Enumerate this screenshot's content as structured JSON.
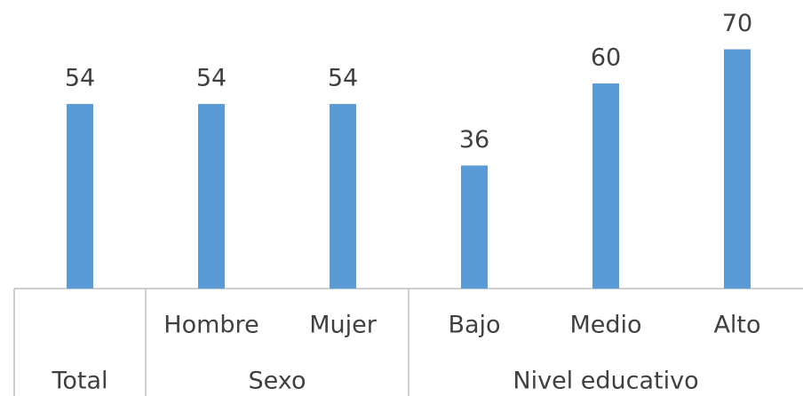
{
  "chart_data": {
    "type": "bar",
    "categories": [
      null,
      "Hombre",
      "Mujer",
      "Bajo",
      "Medio",
      "Alto"
    ],
    "groups": [
      {
        "label": "Total",
        "size": 1
      },
      {
        "label": "Sexo",
        "size": 2
      },
      {
        "label": "Nivel educativo",
        "size": 3
      }
    ],
    "values": [
      54,
      54,
      54,
      36,
      60,
      70
    ],
    "color": "#5b9bd5"
  }
}
